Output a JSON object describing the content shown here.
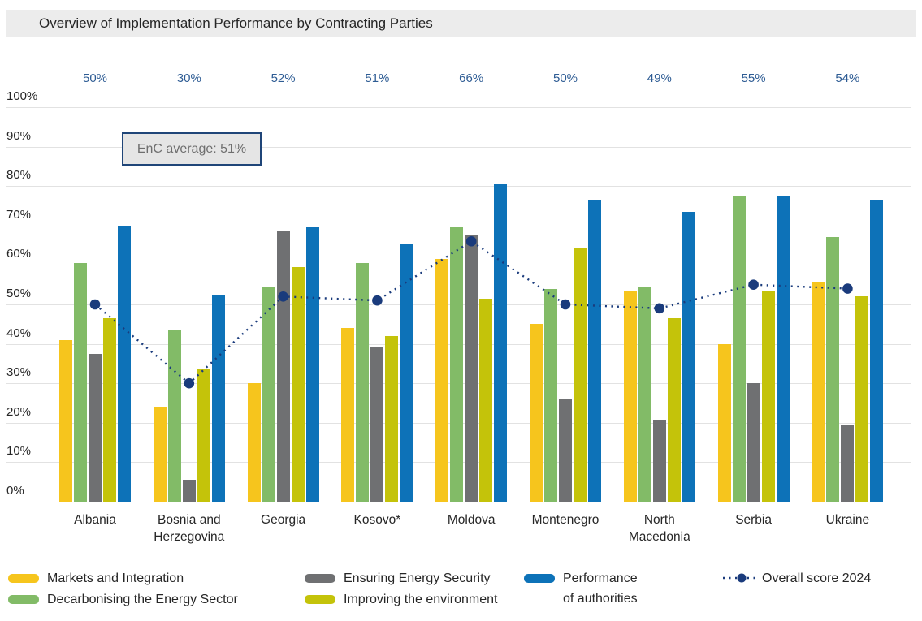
{
  "title": "Overview of Implementation Performance by Contracting Parties",
  "colors": {
    "yellow": "#F6C51D",
    "green": "#82BB67",
    "gray": "#6F7072",
    "olive": "#C4C30A",
    "blue": "#0D72B8",
    "navy": "#1A3B7C",
    "top_label": "#2E5C94",
    "grid": "#E2E2E2",
    "title_bg": "#ECECEC",
    "annotation_bg": "#E5E5E5",
    "annotation_border": "#1F4578",
    "annotation_text": "#6E6E6E",
    "text": "#262626"
  },
  "chart_data": {
    "type": "bar",
    "categories": [
      "Albania",
      "Bosnia and Herzegovina",
      "Georgia",
      "Kosovo*",
      "Moldova",
      "Montenegro",
      "North Macedonia",
      "Serbia",
      "Ukraine"
    ],
    "top_labels": [
      "50%",
      "30%",
      "52%",
      "51%",
      "66%",
      "50%",
      "49%",
      "55%",
      "54%"
    ],
    "y_ticks": [
      "100%",
      "90%",
      "80%",
      "70%",
      "60%",
      "50%",
      "40%",
      "30%",
      "20%",
      "10%",
      "0%"
    ],
    "ylim": [
      0,
      100
    ],
    "grid": true,
    "legend_position": "bottom",
    "series": [
      {
        "name": "Markets and Integration",
        "color_key": "yellow",
        "values": [
          41,
          24,
          30,
          44,
          61.5,
          45,
          53.5,
          40,
          55.5
        ]
      },
      {
        "name": "Decarbonising the Energy Sector",
        "color_key": "green",
        "values": [
          60.5,
          43.5,
          54.5,
          60.5,
          69.5,
          54,
          54.5,
          77.5,
          67
        ]
      },
      {
        "name": "Ensuring Energy Security",
        "color_key": "gray",
        "values": [
          37.5,
          5.5,
          68.5,
          39,
          67.5,
          26,
          20.5,
          30,
          19.5
        ]
      },
      {
        "name": "Improving the environment",
        "color_key": "olive",
        "values": [
          46.5,
          33.5,
          59.5,
          42,
          51.5,
          64.5,
          46.5,
          53.5,
          52
        ]
      },
      {
        "name": "Performance of authorities",
        "color_key": "blue",
        "values": [
          70,
          52.5,
          69.5,
          65.5,
          80.5,
          76.5,
          73.5,
          77.5,
          76.5
        ]
      }
    ],
    "line_series": {
      "name": "Overall score 2024",
      "color_key": "navy",
      "style": "dotted",
      "values": [
        50,
        30,
        52,
        51,
        66,
        50,
        49,
        55,
        54
      ]
    },
    "annotation": {
      "text": "EnC average: 51%"
    }
  },
  "legend": {
    "items": [
      {
        "lines": [
          "Markets and Integration"
        ],
        "color_key": "yellow",
        "symbol": "bar",
        "col": 0,
        "row": 0
      },
      {
        "lines": [
          "Decarbonising the Energy Sector"
        ],
        "color_key": "green",
        "symbol": "bar",
        "col": 0,
        "row": 1
      },
      {
        "lines": [
          "Ensuring Energy Security"
        ],
        "color_key": "gray",
        "symbol": "bar",
        "col": 1,
        "row": 0
      },
      {
        "lines": [
          "Improving the environment"
        ],
        "color_key": "olive",
        "symbol": "bar",
        "col": 1,
        "row": 1
      },
      {
        "lines": [
          "Performance",
          "of authorities"
        ],
        "color_key": "blue",
        "symbol": "bar",
        "col": 2,
        "row": 0
      },
      {
        "lines": [
          "Overall score 2024"
        ],
        "color_key": "navy",
        "symbol": "dotted-line",
        "col": 3,
        "row": 0
      }
    ]
  }
}
